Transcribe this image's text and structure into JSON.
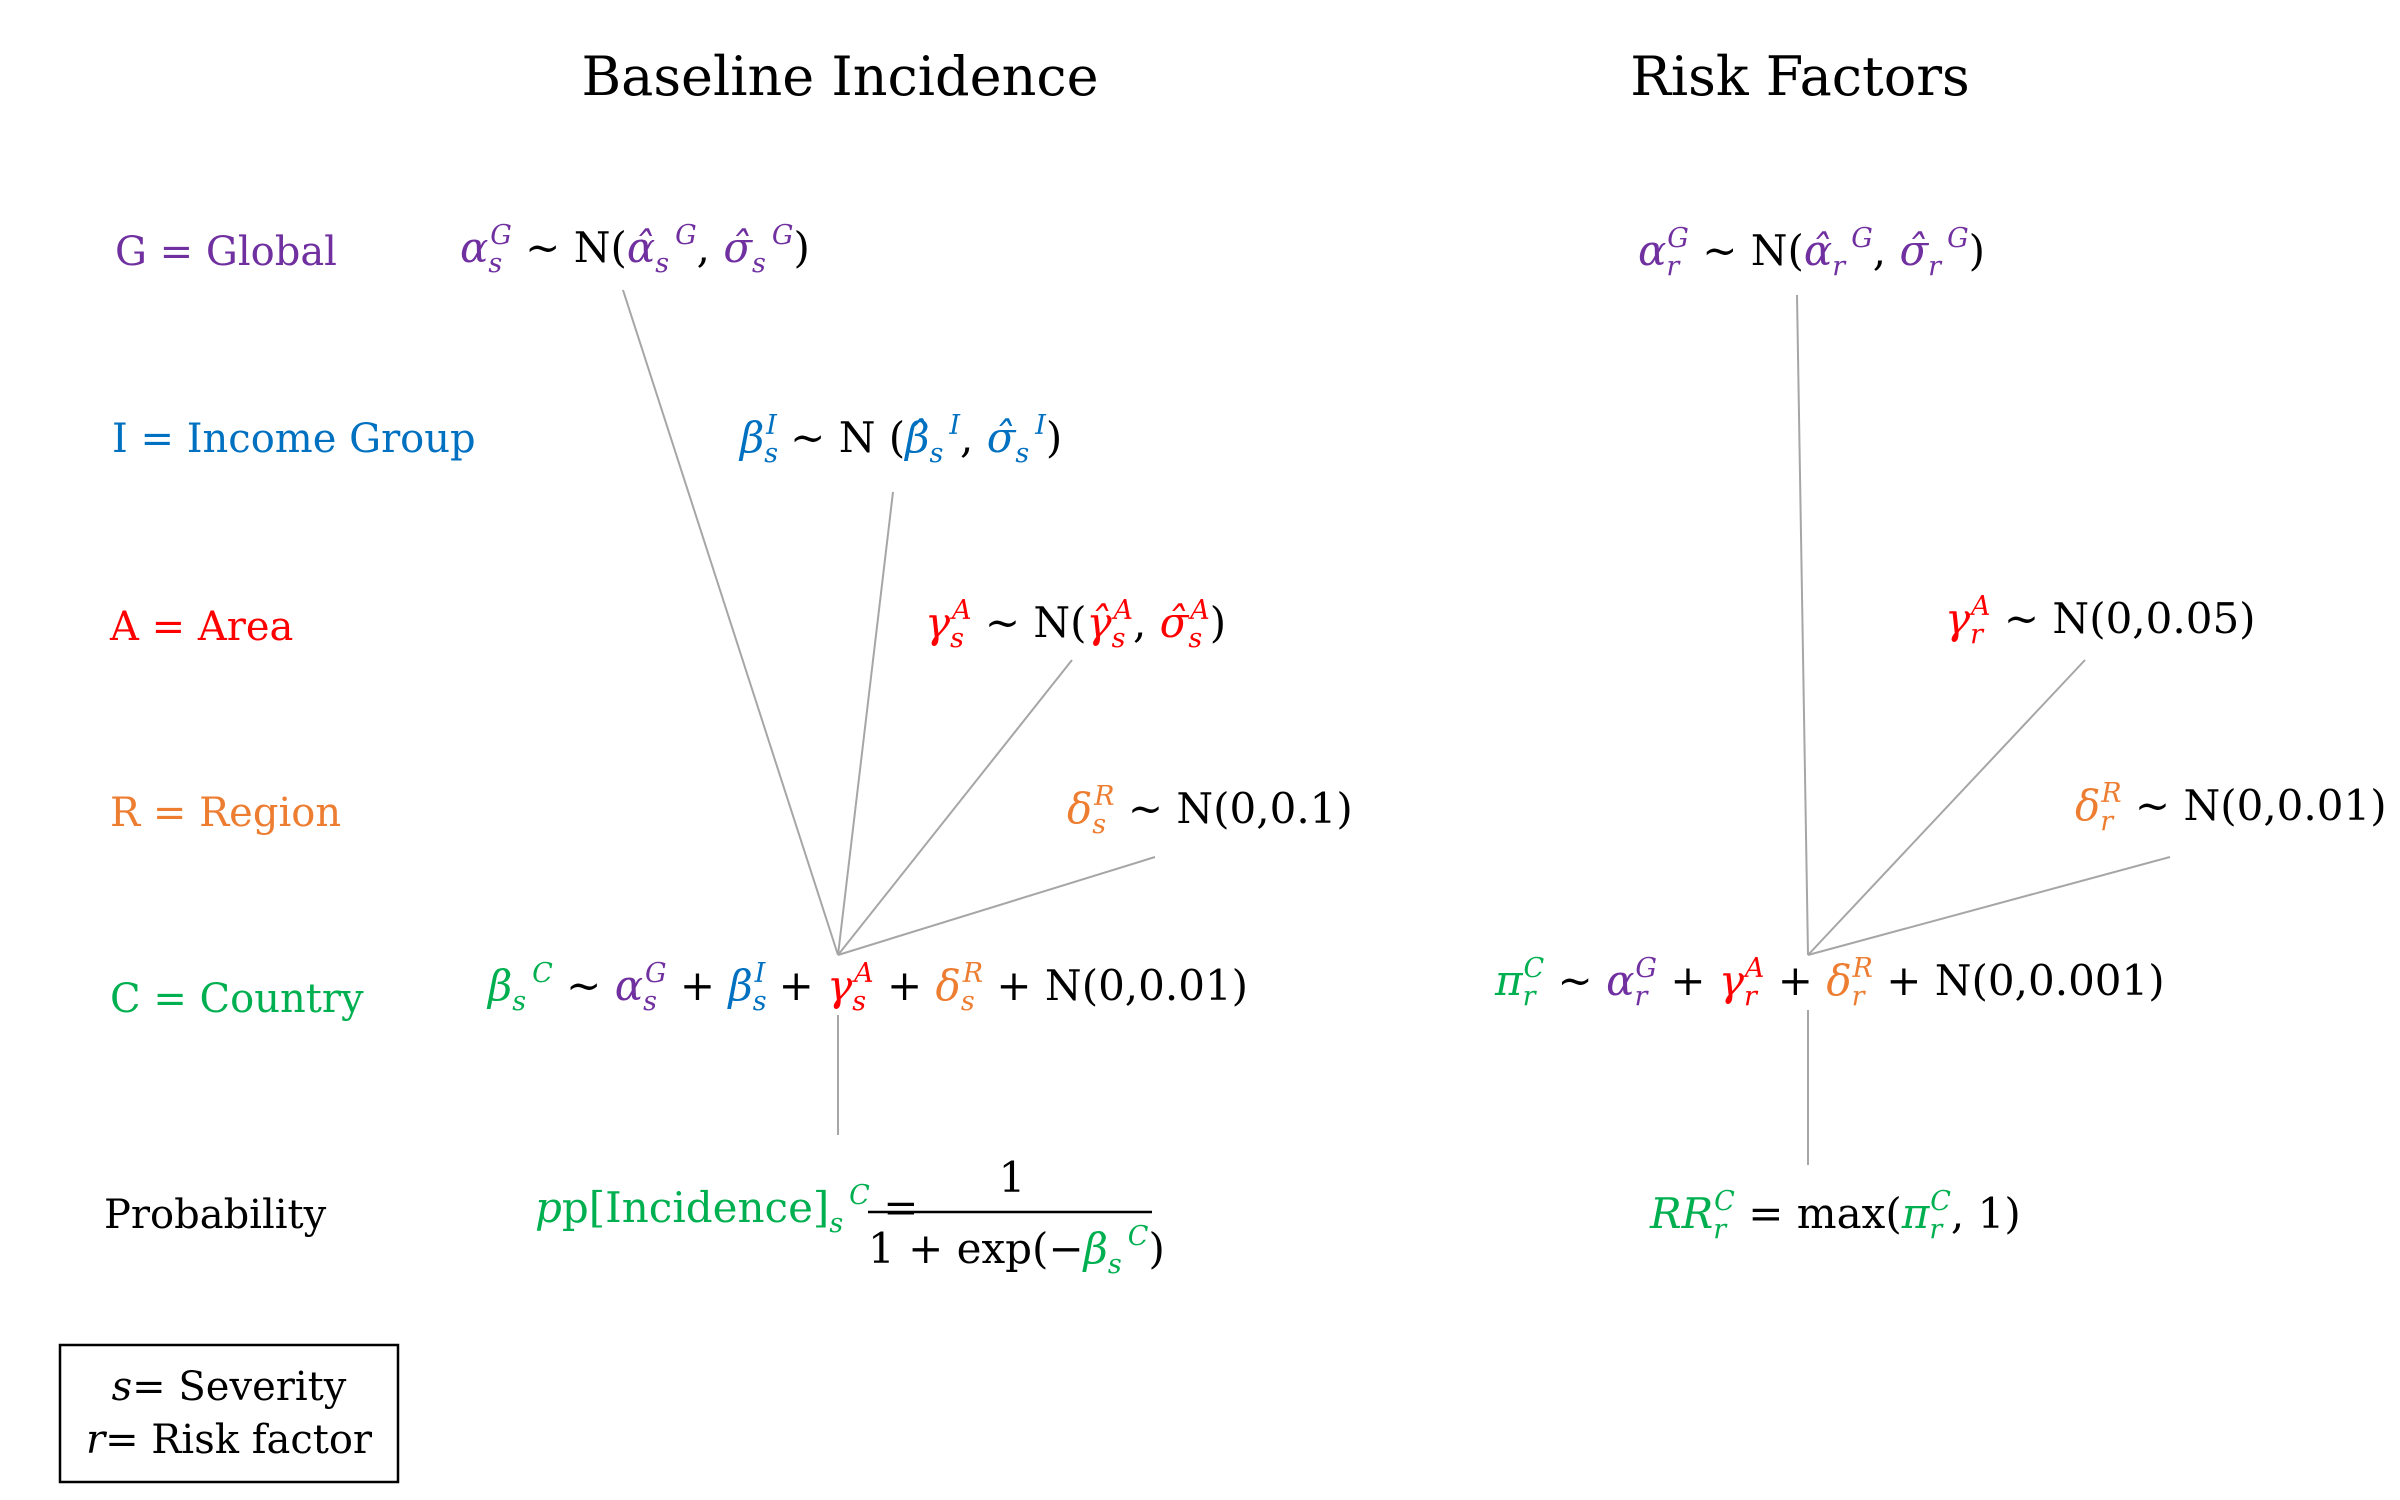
{
  "colors": {
    "global": "#7030a0",
    "income": "#0070c0",
    "area": "#ff0000",
    "region": "#ed7d31",
    "country": "#00b050",
    "black": "#000000",
    "connector": "#a6a6a6"
  },
  "titles": {
    "baseline": "Baseline Incidence",
    "risk": "Risk Factors"
  },
  "levels": {
    "global": "G = Global",
    "income": "I = Income Group",
    "area": "A = Area",
    "region": "R = Region",
    "country": "C = Country",
    "probability": "Probability"
  },
  "legend": {
    "s_symbol": "s",
    "s_text": "= Severity",
    "r_symbol": "r",
    "r_text": "= Risk factor"
  },
  "baseline": {
    "region_params": "(0,0.1)",
    "country_noise": "(0,0.01)",
    "prob_head": "p[Incidence]",
    "prob_num": "1",
    "prob_den": "1 + exp",
    "prob_neg": "−"
  },
  "risk": {
    "area_params": "(0,0.05)",
    "region_params": "(0,0.01)",
    "country_noise": "(0,0.001)",
    "rr_head": "RR",
    "rr_fn": "max",
    "rr_arg": "1"
  }
}
